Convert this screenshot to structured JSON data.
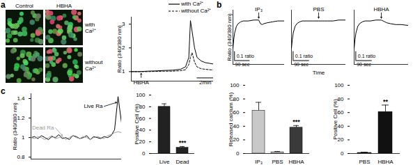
{
  "figure": {
    "panel_labels": [
      "a",
      "b",
      "c"
    ],
    "micrograph": {
      "columns": [
        "Control",
        "HBHA"
      ],
      "rows": [
        "with Ca²⁺",
        "without Ca²⁺"
      ]
    }
  },
  "chart_data": [
    {
      "type": "line",
      "ylabel": "Ratio (340/380 nm)",
      "x": [
        0,
        1,
        2,
        3,
        4,
        5,
        6,
        6.6,
        7,
        7.2,
        7.4,
        7.7,
        8,
        8.5,
        9,
        9.5,
        10
      ],
      "series": [
        {
          "name": "with Ca²⁺",
          "color": "#000000",
          "line_style": "solid",
          "values": [
            1.0,
            1.0,
            1.02,
            1.03,
            1.05,
            1.06,
            1.1,
            1.2,
            1.6,
            3.15,
            2.7,
            2.0,
            1.6,
            1.45,
            1.38,
            1.35,
            1.32
          ]
        },
        {
          "name": "without Ca²⁺",
          "color": "#000000",
          "line_style": "dashed",
          "values": [
            1.0,
            1.0,
            1.0,
            1.01,
            1.02,
            1.02,
            1.04,
            1.08,
            1.3,
            1.6,
            1.8,
            1.4,
            1.2,
            1.12,
            1.1,
            1.08,
            1.07
          ]
        }
      ],
      "xlim": [
        0,
        10
      ],
      "ylim": [
        0.6,
        3.3
      ],
      "yticks": [
        1,
        2,
        3
      ],
      "tick_labels": "y",
      "legend": "top-right",
      "annotations": [
        {
          "text": "HBHA",
          "x": 1.2,
          "y": 0.75,
          "x_to": 1.2,
          "y_to": 0.93
        }
      ],
      "scale_bar": {
        "x_length": 2,
        "x_label": "2min"
      }
    },
    {
      "type": "line",
      "ylabel": "Ratio (340/380 nm)",
      "color": "#000000",
      "x": [
        0,
        5,
        10,
        20,
        30,
        45,
        60,
        90,
        120,
        150,
        160,
        170,
        180,
        200,
        230,
        260,
        300
      ],
      "values": [
        0.7,
        0.8,
        0.87,
        0.94,
        0.97,
        0.99,
        1.0,
        1.0,
        1.01,
        1.01,
        0.97,
        0.96,
        0.97,
        0.98,
        0.99,
        1.0,
        1.0
      ],
      "xlim": [
        0,
        300
      ],
      "ylim": [
        0.52,
        1.12
      ],
      "tick_labels": false,
      "annotations": [
        {
          "text": "IP₃",
          "x": 150,
          "y": 1.09,
          "x_to": 150,
          "y_to": 1.03
        }
      ],
      "scale_bar": {
        "x_length": 90,
        "x_label": "90 sec",
        "y_length": 0.1,
        "y_label": "0.1 ratio"
      }
    },
    {
      "type": "line",
      "xlabel": "Time",
      "color": "#000000",
      "x": [
        0,
        5,
        10,
        20,
        30,
        45,
        60,
        90,
        120,
        150,
        160,
        170,
        180,
        200,
        230,
        260,
        300
      ],
      "values": [
        0.7,
        0.8,
        0.87,
        0.94,
        0.97,
        0.99,
        1.0,
        1.0,
        1.0,
        1.0,
        1.0,
        1.0,
        1.0,
        1.0,
        1.0,
        1.01,
        1.01
      ],
      "xlim": [
        0,
        300
      ],
      "ylim": [
        0.52,
        1.12
      ],
      "tick_labels": false,
      "annotations": [
        {
          "text": "PBS",
          "x": 150,
          "y": 1.09,
          "x_to": 150,
          "y_to": 1.03
        }
      ],
      "scale_bar": {
        "x_length": 90,
        "x_label": "90 sec",
        "y_length": 0.1,
        "y_label": "0.1 ratio"
      }
    },
    {
      "type": "line",
      "color": "#000000",
      "x": [
        0,
        5,
        10,
        20,
        30,
        45,
        60,
        90,
        120,
        150,
        160,
        170,
        180,
        200,
        230,
        260,
        300
      ],
      "values": [
        0.7,
        0.8,
        0.87,
        0.94,
        0.97,
        0.99,
        1.0,
        1.0,
        1.01,
        1.01,
        1.0,
        0.99,
        0.98,
        0.97,
        0.96,
        0.96,
        0.95
      ],
      "xlim": [
        0,
        300
      ],
      "ylim": [
        0.52,
        1.12
      ],
      "tick_labels": false,
      "annotations": [
        {
          "text": "HBHA",
          "x": 150,
          "y": 1.09,
          "x_to": 150,
          "y_to": 1.03
        }
      ],
      "scale_bar": {
        "x_length": 90,
        "x_label": "90 sec",
        "y_length": 0.1,
        "y_label": "0.1 ratio"
      }
    },
    {
      "type": "bar",
      "ylabel": "Released calcium (%)",
      "categories": [
        "IP₃",
        "PBS",
        "HBHA"
      ],
      "values": [
        63,
        2,
        38
      ],
      "errors": [
        12,
        1,
        3
      ],
      "colors": [
        "#c8c8c8",
        "#c8c8c8",
        "#3a3a3a"
      ],
      "ylim": [
        0,
        100
      ],
      "yticks": [
        0,
        20,
        40,
        60,
        80,
        100
      ],
      "annotations": [
        {
          "category": "HBHA",
          "text": "***"
        }
      ]
    },
    {
      "type": "bar",
      "ylabel": "Positive Cell (%)",
      "categories": [
        "PBS",
        "HBHA"
      ],
      "values": [
        1,
        61
      ],
      "errors": [
        1,
        10
      ],
      "colors": [
        "#111111",
        "#111111"
      ],
      "ylim": [
        0,
        100
      ],
      "yticks": [
        0,
        20,
        40,
        60,
        80,
        100
      ],
      "annotations": [
        {
          "category": "HBHA",
          "text": "**"
        }
      ]
    },
    {
      "type": "line",
      "ylabel": "Ratio (340/380 nm)",
      "x": [
        0,
        1,
        2,
        3,
        4,
        5,
        6,
        7,
        8,
        9,
        10,
        11,
        12,
        13,
        14,
        15,
        16,
        17,
        18,
        19,
        20,
        21,
        22,
        23,
        24,
        25,
        26
      ],
      "series": [
        {
          "color": "#000000",
          "values": [
            1.0,
            1.01,
            0.99,
            1.02,
            1.0,
            0.98,
            1.01,
            1.0,
            1.03,
            0.99,
            1.0,
            0.98,
            1.02,
            1.01,
            0.99,
            1.0,
            1.02,
            0.98,
            1.01,
            1.0,
            0.99,
            1.01,
            1.0,
            1.02,
            1.08,
            1.42,
            1.15
          ]
        },
        {
          "color": "#999999",
          "values": [
            1.0,
            0.99,
            1.01,
            1.0,
            0.98,
            1.0,
            1.02,
            0.99,
            1.0,
            1.01,
            0.98,
            1.0,
            1.02,
            1.0,
            0.99,
            1.01,
            1.0,
            0.98,
            1.0,
            1.01,
            1.0,
            0.99,
            1.02,
            1.03,
            1.05,
            1.06,
            1.05
          ]
        }
      ],
      "xlim": [
        0,
        26
      ],
      "ylim": [
        0.78,
        1.45
      ],
      "yticks": [
        0.8,
        1,
        1.2,
        1.4
      ],
      "tick_labels": "y",
      "annotations": [
        {
          "text": "Dead Ra",
          "x": 7,
          "y": 1.1,
          "x_to": 9,
          "y_to": 1.02,
          "color": "#999999"
        },
        {
          "text": "Live Ra",
          "x": 21,
          "y": 1.32,
          "x_to": 24.6,
          "y_to": 1.36,
          "color": "#000000"
        }
      ]
    },
    {
      "type": "bar",
      "ylabel": "Positive Cell (%)",
      "categories": [
        "Live",
        "Dead"
      ],
      "values": [
        80,
        10
      ],
      "errors": [
        5,
        2
      ],
      "colors": [
        "#222222",
        "#222222"
      ],
      "ylim": [
        0,
        100
      ],
      "yticks": [
        0,
        20,
        40,
        60,
        80,
        100
      ],
      "annotations": [
        {
          "category": "Dead",
          "text": "***"
        }
      ]
    }
  ]
}
